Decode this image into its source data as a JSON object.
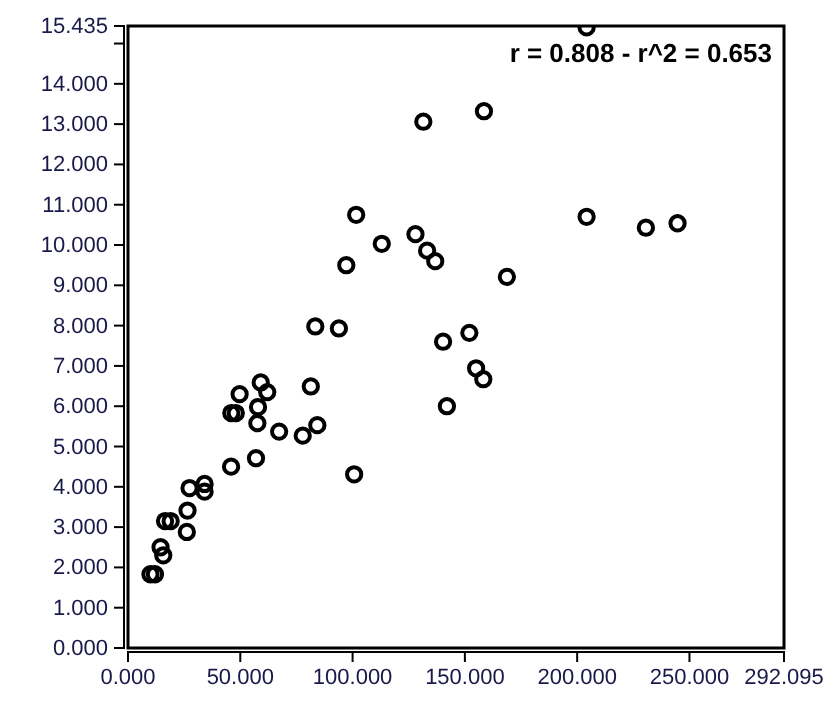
{
  "chart_data": {
    "type": "scatter",
    "marker": "circle",
    "grid": false,
    "annotations": [
      "r = 0.808 - r^2 = 0.653"
    ],
    "xlim": [
      0,
      292.095
    ],
    "ylim": [
      0,
      15.435
    ],
    "xticks": [
      {
        "value": 0,
        "label": "0.000"
      },
      {
        "value": 50,
        "label": "50.000"
      },
      {
        "value": 100,
        "label": "100.000"
      },
      {
        "value": 150,
        "label": "150.000"
      },
      {
        "value": 200,
        "label": "200.000"
      },
      {
        "value": 250,
        "label": "250.000"
      },
      {
        "value": 292.095,
        "label": "292.095"
      }
    ],
    "yticks": [
      {
        "value": 0,
        "label": "0.000"
      },
      {
        "value": 1,
        "label": "1.000"
      },
      {
        "value": 2,
        "label": "2.000"
      },
      {
        "value": 3,
        "label": "3.000"
      },
      {
        "value": 4,
        "label": "4.000"
      },
      {
        "value": 5,
        "label": "5.000"
      },
      {
        "value": 6,
        "label": "6.000"
      },
      {
        "value": 7,
        "label": "7.000"
      },
      {
        "value": 8,
        "label": "8.000"
      },
      {
        "value": 9,
        "label": "9.000"
      },
      {
        "value": 10,
        "label": "10.000"
      },
      {
        "value": 11,
        "label": "11.000"
      },
      {
        "value": 12,
        "label": "12.000"
      },
      {
        "value": 13,
        "label": "13.000"
      },
      {
        "value": 14,
        "label": "14.000"
      },
      {
        "value": 15,
        "label": null
      },
      {
        "value": 15.435,
        "label": "15.435"
      }
    ],
    "series": [
      {
        "color": "#000000",
        "x": [
          10,
          12,
          14.5,
          15.7,
          16.5,
          19,
          26.2,
          26.5,
          27.4,
          34.1,
          34.1,
          45.9,
          46,
          48,
          49.7,
          57,
          57.6,
          57.9,
          59.1,
          62,
          67.3,
          77.8,
          81.4,
          84.3,
          100.7,
          83.4,
          93.9,
          97.2,
          101.6,
          113,
          128,
          131.5,
          158.5,
          204.2,
          133.2,
          136.8,
          168.7,
          204.2,
          230.6,
          244.7,
          140.3,
          152,
          155,
          158.2,
          142
        ],
        "values": [
          1.83,
          1.83,
          2.5,
          2.3,
          3.15,
          3.15,
          2.88,
          3.41,
          3.97,
          4.07,
          3.88,
          4.5,
          5.83,
          5.83,
          6.3,
          4.71,
          5.58,
          5.98,
          6.59,
          6.35,
          5.37,
          5.27,
          6.49,
          5.53,
          4.31,
          7.98,
          7.93,
          9.5,
          10.75,
          10.03,
          10.27,
          13.06,
          13.32,
          15.4,
          9.86,
          9.6,
          9.21,
          10.7,
          10.43,
          10.54,
          7.6,
          7.82,
          6.94,
          6.67,
          6
        ]
      }
    ]
  }
}
